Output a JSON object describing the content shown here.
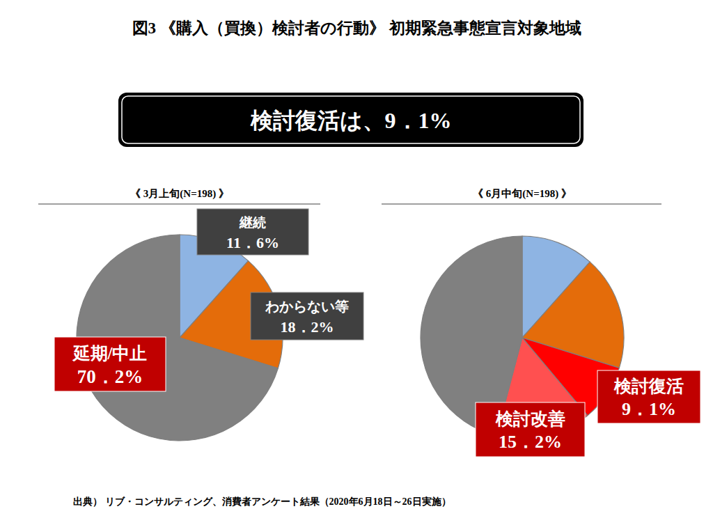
{
  "title": "図3 《購入（買換）検討者の行動》 初期緊急事態宣言対象地域",
  "headline": "検討復活は、9．1%",
  "source": "出典） リブ・コンサルティング、消費者アンケート結果（2020年6月18日～26日実施）",
  "chart_data": [
    {
      "type": "pie",
      "title": "《 3月上旬(N=198) 》",
      "categories": [
        "継続",
        "わからない等",
        "延期/中止"
      ],
      "values": [
        11.6,
        18.2,
        70.2
      ],
      "value_labels": [
        "11．6%",
        "18．2%",
        "70．2%"
      ],
      "colors": [
        "#8eb4e3",
        "#e46c0a",
        "#808080"
      ],
      "data_labels": true
    },
    {
      "type": "pie",
      "title": "《 6月中旬(N=198) 》",
      "categories": [
        null,
        null,
        "検討復活",
        "検討改善",
        null
      ],
      "values": [
        11.6,
        18.2,
        9.1,
        15.2,
        45.9
      ],
      "value_labels": [
        null,
        null,
        "9．1%",
        "15．2%",
        null
      ],
      "colors": [
        "#8eb4e3",
        "#e46c0a",
        "#ff0000",
        "#ff5050",
        "#808080"
      ],
      "data_labels": true
    }
  ]
}
